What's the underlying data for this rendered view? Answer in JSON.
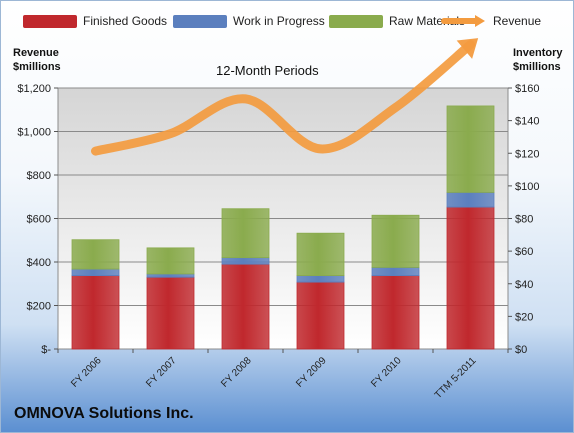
{
  "chart_data": {
    "type": "bar",
    "subtitle": "12-Month Periods",
    "company": "OMNOVA Solutions Inc.",
    "left_axis_title": [
      "Revenue",
      "$millions"
    ],
    "right_axis_title": [
      "Inventory",
      "$millions"
    ],
    "categories": [
      "FY 2006",
      "FY 2007",
      "FY 2008",
      "FY 2009",
      "FY 2010",
      "TTM 5-2011"
    ],
    "series": [
      {
        "name": "Finished Goods",
        "values": [
          45,
          44,
          52,
          41,
          45,
          87
        ],
        "color": "#c0282d",
        "axis": "right",
        "stacked": true
      },
      {
        "name": "Work in Progress",
        "values": [
          4,
          2,
          4,
          4,
          5,
          9
        ],
        "color": "#5b7fbe",
        "axis": "right",
        "stacked": true
      },
      {
        "name": "Raw Materials",
        "values": [
          18,
          16,
          30,
          26,
          32,
          53
        ],
        "color": "#8aab4d",
        "axis": "right",
        "stacked": true
      },
      {
        "name": "Revenue",
        "values": [
          910,
          990,
          1150,
          920,
          1110,
          1400
        ],
        "color": "#f39b3f",
        "axis": "left",
        "type": "line"
      }
    ],
    "left_axis": {
      "min": 0,
      "max": 1200,
      "step": 200,
      "tick_labels": [
        "$-",
        "$200",
        "$400",
        "$600",
        "$800",
        "$1,000",
        "$1,200"
      ]
    },
    "right_axis": {
      "min": 0,
      "max": 160,
      "step": 20,
      "tick_labels": [
        "$0",
        "$20",
        "$40",
        "$60",
        "$80",
        "$100",
        "$120",
        "$140",
        "$160"
      ]
    },
    "grid": true,
    "legend_position": "top"
  }
}
